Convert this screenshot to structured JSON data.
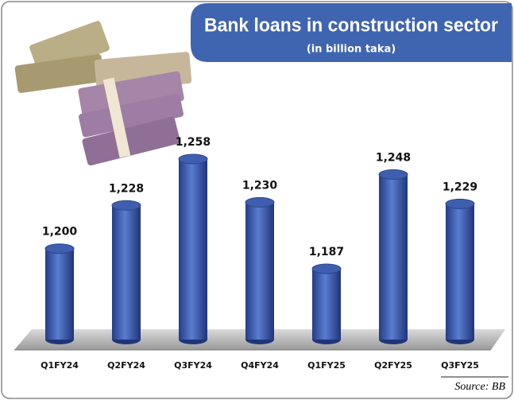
{
  "chart_data": {
    "type": "bar",
    "title": "Bank loans in construction sector",
    "subtitle": "(in billion taka)",
    "categories": [
      "Q1FY24",
      "Q2FY24",
      "Q3FY24",
      "Q4FY24",
      "Q1FY25",
      "Q2FY25",
      "Q3FY25"
    ],
    "values": [
      1200,
      1228,
      1258,
      1230,
      1187,
      1248,
      1229
    ],
    "value_labels": [
      "1,200",
      "1,228",
      "1,258",
      "1,230",
      "1,187",
      "1,248",
      "1,229"
    ],
    "color": "#3f5fae",
    "source": "Source: BB"
  }
}
